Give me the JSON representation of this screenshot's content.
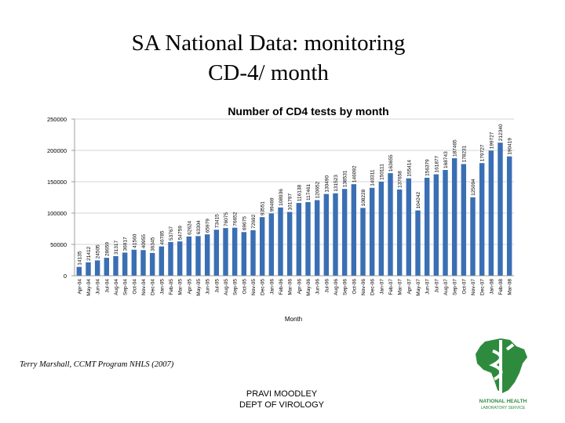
{
  "slide": {
    "title_line1": "SA National Data: monitoring",
    "title_line2": "CD-4/ month",
    "credit": "Terry Marshall, CCMT Program NHLS (2007)",
    "footer_line1": "PRAVI MOODLEY",
    "footer_line2": "DEPT OF VIROLOGY",
    "logo_line1": "NATIONAL HEALTH",
    "logo_line2": "LABORATORY SERVICE"
  },
  "colors": {
    "bar": "#3a6fb3",
    "grid": "#c8c8c8",
    "logo_green": "#2e8b3e"
  },
  "chart_data": {
    "type": "bar",
    "title": "Number of CD4 tests by month",
    "xlabel": "Month",
    "ylabel": "",
    "ylim": [
      0,
      250000
    ],
    "yticks": [
      0,
      50000,
      100000,
      150000,
      200000,
      250000
    ],
    "grid": true,
    "categories": [
      "Apr-04",
      "May-04",
      "Jun-04",
      "Jul-04",
      "Aug-04",
      "Sep-04",
      "Oct-04",
      "Nov-04",
      "Dec-04",
      "Jan-05",
      "Feb-05",
      "Mar-05",
      "Apr-05",
      "May-05",
      "Jun-05",
      "Jul-05",
      "Aug-05",
      "Sep-05",
      "Oct-05",
      "Nov-05",
      "Dec-05",
      "Jan-06",
      "Feb-06",
      "Mar-06",
      "Apr-06",
      "May-06",
      "Jun-06",
      "Jul-06",
      "Aug-06",
      "Sep-06",
      "Oct-06",
      "Nov-06",
      "Dec-06",
      "Jan-07",
      "Feb-07",
      "Mar-07",
      "Apr-07",
      "May-07",
      "Jun-07",
      "Jul-07",
      "Aug-07",
      "Sep-07",
      "Oct-07",
      "Nov-07",
      "Dec-07",
      "Jan-08",
      "Feb-08",
      "Mar-08"
    ],
    "values": [
      14135,
      21412,
      24505,
      28659,
      31317,
      36917,
      41560,
      40955,
      36345,
      46785,
      53767,
      54759,
      62624,
      63304,
      65979,
      73415,
      76075,
      76652,
      69675,
      72692,
      93551,
      99469,
      108936,
      101797,
      116138,
      117461,
      120652,
      130490,
      131523,
      138531,
      146092,
      108228,
      140311,
      150111,
      163655,
      137658,
      155414,
      104242,
      156379,
      161877,
      168743,
      187465,
      178231,
      125094,
      179727,
      199727,
      212340,
      190419
    ],
    "labels": [
      "14135",
      "21412",
      "24505",
      "28659",
      "31317",
      "36917",
      "41560",
      "40955",
      "36345",
      "46785",
      "53767",
      "54759",
      "62624",
      "63304",
      "65979",
      "73415",
      "76075",
      "76652",
      "69675",
      "72692",
      "93551",
      "99469",
      "108936",
      "101797",
      "116138",
      "117461",
      "120652",
      "130490",
      "131523",
      "138531",
      "146092",
      "108228",
      "140311",
      "150111",
      "163655",
      "137658",
      "155414",
      "104242",
      "156379",
      "161877",
      "168743",
      "187465",
      "178231",
      "125094",
      "179727",
      "199727",
      "212340",
      "190419"
    ]
  }
}
